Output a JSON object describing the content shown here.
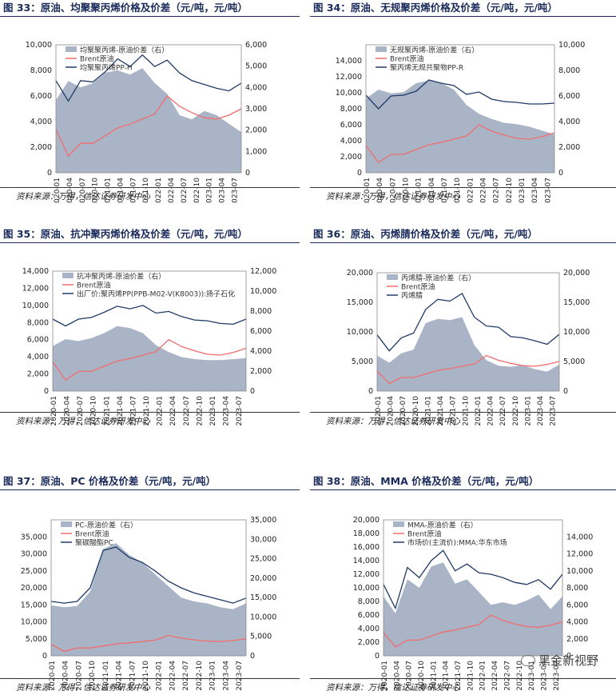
{
  "figures": [
    {
      "title": "图 33：原油、均聚聚丙烯价格及价差（元/吨，元/吨）",
      "source": "资料来源：万得，信达证券研发中心",
      "legend": [
        "均聚聚丙烯-原油价差（右）",
        "Brent原油",
        "均聚聚丙烯PP-H"
      ]
    },
    {
      "title": "图 34：原油、无规聚丙烯价格及价差（元/吨，元/吨）",
      "source": "资料来源：万得，信达证券研发中心",
      "legend": [
        "无规聚丙烯-原油价差（右）",
        "Brent原油",
        "聚丙烯无规共聚物PP-R"
      ]
    },
    {
      "title": "图 35：原油、抗冲聚丙烯价格及价差（元/吨，元/吨）",
      "source": "资料来源：万得，信达证券研发中心",
      "legend": [
        "抗冲聚丙烯-原油价差（右）",
        "Brent原油",
        "出厂价:聚丙烯PP(PPB-M02-V(K8003)):扬子石化"
      ]
    },
    {
      "title": "图 36：原油、丙烯腈价格及价差（元/吨，元/吨）",
      "source": "资料来源：万得，信达证券研发中心",
      "legend": [
        "丙烯腈-原油价差（右）",
        "Brent原油",
        "丙烯腈"
      ]
    },
    {
      "title": "图 37：原油、PC 价格及价差（元/吨，元/吨）",
      "source": "资料来源：万得，信达证券研发中心",
      "legend": [
        "PC-原油价差（右）",
        "Brent原油",
        "聚碳酸酯PC"
      ]
    },
    {
      "title": "图 38：原油、MMA 价格及价差（元/吨，元/吨）",
      "source": "资料来源：万得，信达证券研发中心",
      "legend": [
        "MMA-原油价差（右）",
        "Brent原油",
        "市场价(主流价):MMA:华东市场"
      ]
    }
  ],
  "watermark": "黑金新视野",
  "colors": {
    "spread": "#a9b4c6",
    "brent": "#f26d6d",
    "product": "#1f3a68",
    "title": "#1a2a5a"
  },
  "chart_data": [
    {
      "type": "area",
      "x": [
        "2020-01",
        "2020-04",
        "2020-07",
        "2020-10",
        "2021-01",
        "2021-04",
        "2021-07",
        "2021-10",
        "2022-01",
        "2022-04",
        "2022-07",
        "2022-10",
        "2023-01",
        "2023-04",
        "2023-07",
        "2023-09"
      ],
      "xticks": [
        "2020-01",
        "2020-04",
        "2020-07",
        "2020-10",
        "2021-01",
        "2021-04",
        "2021-07",
        "2021-10",
        "2022-01",
        "2022-04",
        "2022-07",
        "2022-10",
        "2023-01",
        "2023-04",
        "2023-07"
      ],
      "y_left": {
        "ylim": [
          0,
          10000
        ],
        "ticks": [
          "0",
          "2,000",
          "4,000",
          "6,000",
          "8,000",
          "10,000"
        ]
      },
      "y_right": {
        "ylim": [
          0,
          6000
        ],
        "ticks": [
          "0",
          "1,000",
          "2,000",
          "3,000",
          "4,000",
          "5,000",
          "6,000"
        ]
      },
      "series": [
        {
          "name": "均聚聚丙烯-原油价差（右）",
          "axis": "right",
          "values": [
            3400,
            4300,
            4000,
            4200,
            4700,
            4800,
            4600,
            4900,
            4200,
            3700,
            2700,
            2500,
            2900,
            2700,
            2300,
            1900
          ]
        },
        {
          "name": "Brent原油",
          "axis": "left",
          "values": [
            3400,
            1300,
            2300,
            2300,
            2900,
            3500,
            3800,
            4200,
            4600,
            6000,
            5200,
            4700,
            4300,
            4200,
            4500,
            5000
          ]
        },
        {
          "name": "均聚聚丙烯PP-H",
          "axis": "left",
          "values": [
            7200,
            5600,
            7200,
            7100,
            7900,
            8900,
            8300,
            9200,
            8300,
            8800,
            7800,
            7200,
            6900,
            6600,
            6400,
            7000
          ]
        }
      ]
    },
    {
      "type": "area",
      "x": [
        "2020-01",
        "2020-04",
        "2020-07",
        "2020-10",
        "2021-01",
        "2021-04",
        "2021-07",
        "2021-10",
        "2022-01",
        "2022-04",
        "2022-07",
        "2022-10",
        "2023-01",
        "2023-04",
        "2023-07",
        "2023-09"
      ],
      "xticks": [
        "2020-01",
        "2020-04",
        "2020-07",
        "2020-10",
        "2021-01",
        "2021-04",
        "2021-07",
        "2021-10",
        "2022-01",
        "2022-04",
        "2022-07",
        "2022-10",
        "2023-01",
        "2023-04",
        "2023-07"
      ],
      "y_left": {
        "ylim": [
          0,
          16000
        ],
        "ticks": [
          "0",
          "2,000",
          "4,000",
          "6,000",
          "8,000",
          "10,000",
          "12,000",
          "14,000"
        ]
      },
      "y_right": {
        "ylim": [
          0,
          10000
        ],
        "ticks": [
          "0",
          "2,000",
          "4,000",
          "6,000",
          "8,000",
          "10,000"
        ]
      },
      "series": [
        {
          "name": "无规聚丙烯-原油价差（右）",
          "axis": "right",
          "values": [
            5800,
            6500,
            6200,
            6300,
            7000,
            7200,
            7000,
            6500,
            5300,
            4600,
            4200,
            3900,
            3800,
            3600,
            3300,
            3000
          ]
        },
        {
          "name": "Brent原油",
          "axis": "left",
          "values": [
            3400,
            1300,
            2300,
            2300,
            2900,
            3500,
            3800,
            4200,
            4600,
            6000,
            5200,
            4700,
            4300,
            4200,
            4500,
            5000
          ]
        },
        {
          "name": "聚丙烯无规共聚物PP-R",
          "axis": "left",
          "values": [
            9700,
            8000,
            9600,
            9700,
            10200,
            11600,
            11200,
            10900,
            9800,
            10100,
            9200,
            8900,
            8800,
            8600,
            8600,
            8700
          ]
        }
      ]
    },
    {
      "type": "area",
      "x": [
        "2020-01",
        "2020-04",
        "2020-07",
        "2020-10",
        "2021-01",
        "2021-04",
        "2021-07",
        "2021-10",
        "2022-01",
        "2022-04",
        "2022-07",
        "2022-10",
        "2023-01",
        "2023-04",
        "2023-07",
        "2023-09"
      ],
      "xticks": [
        "2020-01",
        "2020-04",
        "2020-07",
        "2020-10",
        "2021-01",
        "2021-04",
        "2021-07",
        "2021-10",
        "2022-01",
        "2022-04",
        "2022-07",
        "2022-10",
        "2023-01",
        "2023-04",
        "2023-07"
      ],
      "y_left": {
        "ylim": [
          0,
          14000
        ],
        "ticks": [
          "0",
          "2,000",
          "4,000",
          "6,000",
          "8,000",
          "10,000",
          "12,000",
          "14,000"
        ]
      },
      "y_right": {
        "ylim": [
          0,
          12000
        ],
        "ticks": [
          "0",
          "2,000",
          "4,000",
          "6,000",
          "8,000",
          "10,000",
          "12,000"
        ]
      },
      "series": [
        {
          "name": "抗冲聚丙烯-原油价差（右）",
          "axis": "right",
          "values": [
            4500,
            5200,
            5000,
            5300,
            5800,
            6500,
            6300,
            5800,
            4600,
            3900,
            3400,
            3200,
            3100,
            3100,
            3200,
            3300
          ]
        },
        {
          "name": "Brent原油",
          "axis": "left",
          "values": [
            3400,
            1300,
            2300,
            2300,
            2900,
            3500,
            3800,
            4200,
            4600,
            6000,
            5200,
            4700,
            4300,
            4200,
            4500,
            5000
          ]
        },
        {
          "name": "出厂价:聚丙烯PP(PPB-M02-V(K8003)):扬子石化",
          "axis": "left",
          "values": [
            8400,
            7600,
            8400,
            8600,
            9200,
            9900,
            9600,
            10000,
            9100,
            9300,
            8700,
            8300,
            8200,
            7900,
            7800,
            8400
          ]
        }
      ]
    },
    {
      "type": "area",
      "x": [
        "2020-01",
        "2020-04",
        "2020-07",
        "2020-10",
        "2021-01",
        "2021-04",
        "2021-07",
        "2021-10",
        "2022-01",
        "2022-04",
        "2022-07",
        "2022-10",
        "2023-01",
        "2023-04",
        "2023-07",
        "2023-09"
      ],
      "xticks": [
        "2020-01",
        "2020-04",
        "2020-07",
        "2020-10",
        "2021-01",
        "2021-04",
        "2021-07",
        "2021-10",
        "2022-01",
        "2022-04",
        "2022-07",
        "2022-10",
        "2023-01",
        "2023-04",
        "2023-07"
      ],
      "y_left": {
        "ylim": [
          0,
          20000
        ],
        "ticks": [
          "0",
          "5,000",
          "10,000",
          "15,000",
          "20,000"
        ]
      },
      "y_right": {
        "ylim": [
          0,
          20000
        ],
        "ticks": [
          "0",
          "5,000",
          "10,000",
          "15,000",
          "20,000"
        ]
      },
      "series": [
        {
          "name": "丙烯腈-原油价差（右）",
          "axis": "right",
          "values": [
            6000,
            4800,
            6400,
            7000,
            11500,
            12200,
            12000,
            12500,
            7800,
            5200,
            4300,
            4100,
            4400,
            3700,
            3300,
            4500
          ]
        },
        {
          "name": "Brent原油",
          "axis": "left",
          "values": [
            3400,
            1300,
            2300,
            2300,
            2900,
            3500,
            3800,
            4200,
            4600,
            6000,
            5200,
            4700,
            4300,
            4200,
            4500,
            5000
          ]
        },
        {
          "name": "丙烯腈",
          "axis": "left",
          "values": [
            9500,
            6800,
            9000,
            9800,
            13800,
            15500,
            15200,
            16500,
            12500,
            11000,
            10800,
            9200,
            9000,
            8500,
            7900,
            9600
          ]
        }
      ]
    },
    {
      "type": "area",
      "x": [
        "2020-01",
        "2020-04",
        "2020-07",
        "2020-10",
        "2021-01",
        "2021-04",
        "2021-07",
        "2021-10",
        "2022-01",
        "2022-04",
        "2022-07",
        "2022-10",
        "2023-01",
        "2023-04",
        "2023-07",
        "2023-09"
      ],
      "xticks": [
        "2020-01",
        "2020-04",
        "2020-07",
        "2020-10",
        "2021-01",
        "2021-04",
        "2021-07",
        "2021-10",
        "2022-01",
        "2022-04",
        "2022-07",
        "2022-10",
        "2023-01",
        "2023-04",
        "2023-07"
      ],
      "y_left": {
        "ylim": [
          0,
          40000
        ],
        "ticks": [
          "0",
          "5,000",
          "10,000",
          "15,000",
          "20,000",
          "25,000",
          "30,000",
          "35,000"
        ]
      },
      "y_right": {
        "ylim": [
          0,
          35000
        ],
        "ticks": [
          "0",
          "5,000",
          "10,000",
          "15,000",
          "20,000",
          "25,000",
          "30,000",
          "35,000"
        ]
      },
      "series": [
        {
          "name": "PC-原油价差（右）",
          "axis": "right",
          "values": [
            13000,
            12500,
            12800,
            16500,
            27500,
            29000,
            26000,
            24000,
            21000,
            18000,
            15000,
            14000,
            13500,
            12500,
            12000,
            13500
          ]
        },
        {
          "name": "Brent原油",
          "axis": "left",
          "values": [
            3400,
            1300,
            2300,
            2300,
            2900,
            3500,
            3800,
            4200,
            4600,
            6000,
            5200,
            4700,
            4300,
            4200,
            4500,
            5000
          ]
        },
        {
          "name": "聚碳酸酯PC",
          "axis": "left",
          "values": [
            16000,
            15500,
            16000,
            20000,
            31000,
            32000,
            29000,
            27500,
            25000,
            22000,
            20000,
            18500,
            17500,
            16500,
            15500,
            17000
          ]
        }
      ]
    },
    {
      "type": "area",
      "x": [
        "2020-01",
        "2020-04",
        "2020-07",
        "2020-10",
        "2021-01",
        "2021-04",
        "2021-07",
        "2021-10",
        "2022-01",
        "2022-04",
        "2022-07",
        "2022-10",
        "2023-01",
        "2023-04",
        "2023-07",
        "2023-09"
      ],
      "xticks": [
        "2020-01",
        "2020-04",
        "2020-07",
        "2020-10",
        "2021-01",
        "2021-04",
        "2021-07",
        "2021-10",
        "2022-01",
        "2022-04",
        "2022-07",
        "2022-10",
        "2023-01",
        "2023-04",
        "2023-07"
      ],
      "y_left": {
        "ylim": [
          0,
          20000
        ],
        "ticks": [
          "0",
          "2,000",
          "4,000",
          "6,000",
          "8,000",
          "10,000",
          "12,000",
          "14,000",
          "16,000",
          "18,000",
          "20,000"
        ]
      },
      "y_right": {
        "ylim": [
          0,
          16000
        ],
        "ticks": [
          "0",
          "2,000",
          "4,000",
          "6,000",
          "8,000",
          "10,000",
          "12,000",
          "14,000"
        ]
      },
      "series": [
        {
          "name": "MMA-原油价差（右）",
          "axis": "right",
          "values": [
            7000,
            5000,
            9000,
            8000,
            10500,
            11000,
            8500,
            9000,
            7500,
            6000,
            6300,
            6000,
            6500,
            7200,
            5500,
            7000
          ]
        },
        {
          "name": "Brent原油",
          "axis": "left",
          "values": [
            3400,
            1300,
            2300,
            2300,
            2900,
            3500,
            3800,
            4200,
            4600,
            6000,
            5200,
            4700,
            4300,
            4200,
            4500,
            5000
          ]
        },
        {
          "name": "市场价(主流价):MMA:华东市场",
          "axis": "left",
          "values": [
            10500,
            7000,
            13000,
            11500,
            14000,
            15500,
            12500,
            13500,
            12200,
            12000,
            11500,
            10800,
            10500,
            11200,
            9800,
            12000
          ]
        }
      ]
    }
  ]
}
